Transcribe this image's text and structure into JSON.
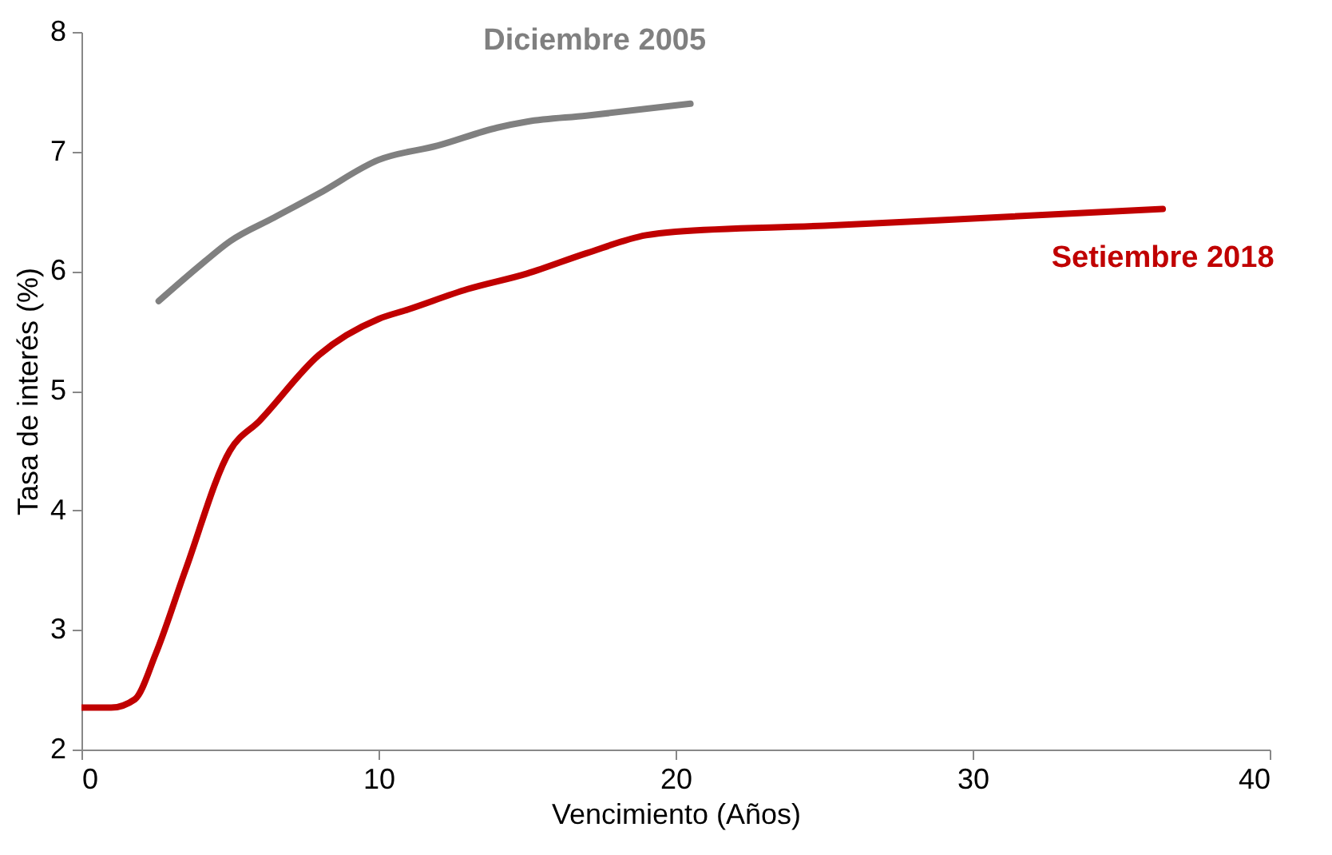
{
  "chart_data": {
    "type": "line",
    "xlabel": "Vencimiento (Años)",
    "ylabel": "Tasa de interés (%)",
    "xlim": [
      0,
      40
    ],
    "xticks": [
      0,
      10,
      20,
      30,
      40
    ],
    "ylim": [
      2,
      8
    ],
    "yticks": [
      2,
      3,
      4,
      5,
      6,
      7,
      8
    ],
    "grid": false,
    "marker": "none",
    "line_style": "solid",
    "series": [
      {
        "name": "Diciembre 2005",
        "color": "#808080",
        "x": [
          2.6,
          4,
          5,
          6.5,
          8,
          10,
          12,
          14,
          15,
          17,
          20.5
        ],
        "values": [
          5.75,
          6.05,
          6.25,
          6.45,
          6.65,
          6.93,
          7.05,
          7.2,
          7.25,
          7.3,
          7.4
        ]
      },
      {
        "name": "Setiembre 2018",
        "color": "#c00000",
        "x": [
          0,
          1,
          1.8,
          2.5,
          3.5,
          5,
          6,
          8,
          10,
          11,
          13,
          15,
          17,
          19,
          20,
          25,
          30,
          36.4
        ],
        "values": [
          2.35,
          2.35,
          2.42,
          2.8,
          3.5,
          4.5,
          4.75,
          5.3,
          5.6,
          5.68,
          5.85,
          5.98,
          6.15,
          6.3,
          6.33,
          6.38,
          6.44,
          6.52
        ]
      }
    ]
  }
}
